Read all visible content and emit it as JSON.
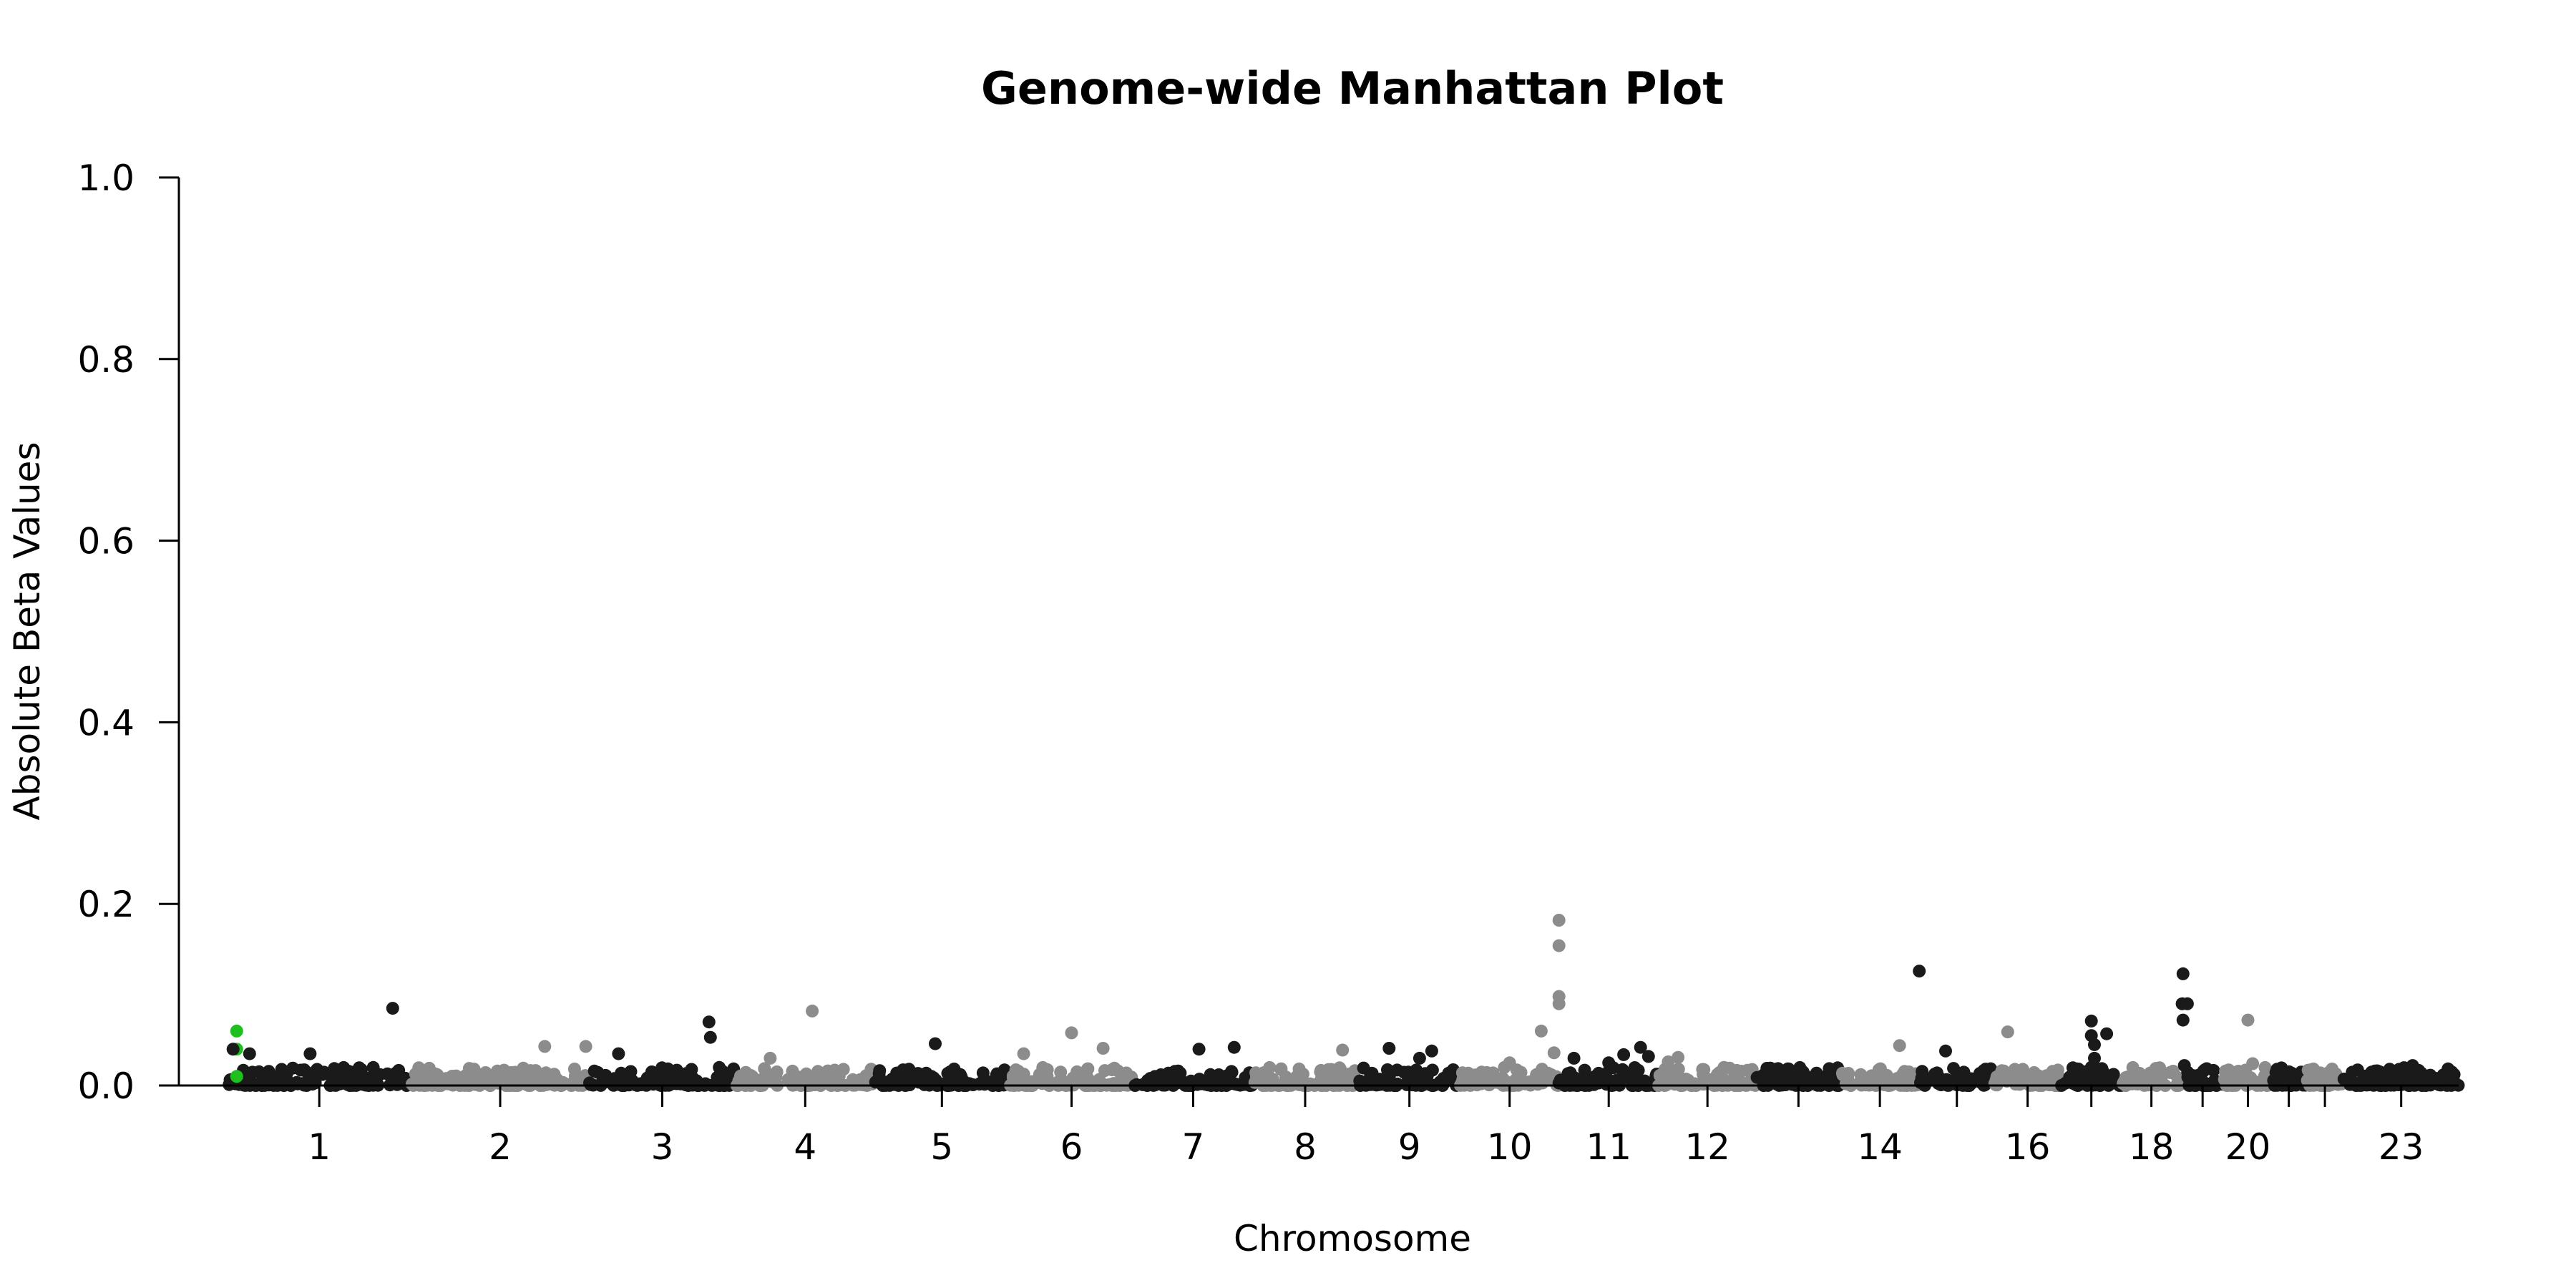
{
  "chart_data": {
    "type": "scatter",
    "title": "Genome-wide Manhattan Plot",
    "xlabel": "Chromosome",
    "ylabel": "Absolute Beta Values",
    "ylim": [
      0,
      1.0
    ],
    "y_ticks": [
      "0.0",
      "0.2",
      "0.4",
      "0.6",
      "0.8",
      "1.0"
    ],
    "x_tick_labels": [
      "1",
      "2",
      "3",
      "4",
      "5",
      "6",
      "7",
      "8",
      "9",
      "10",
      "11",
      "12",
      "14",
      "16",
      "18",
      "20",
      "23"
    ],
    "grid": false,
    "legend": "none",
    "colors": {
      "odd": "#1a1a1a",
      "even": "#8c8c8c",
      "highlight": "#1fbf1f"
    },
    "chromosomes": [
      {
        "chr": "1",
        "label": "1",
        "rel_width": 249
      },
      {
        "chr": "2",
        "label": "2",
        "rel_width": 242
      },
      {
        "chr": "3",
        "label": "3",
        "rel_width": 198
      },
      {
        "chr": "4",
        "label": "4",
        "rel_width": 190
      },
      {
        "chr": "5",
        "label": "5",
        "rel_width": 181
      },
      {
        "chr": "6",
        "label": "6",
        "rel_width": 171
      },
      {
        "chr": "7",
        "label": "7",
        "rel_width": 159
      },
      {
        "chr": "8",
        "label": "8",
        "rel_width": 145
      },
      {
        "chr": "9",
        "label": "9",
        "rel_width": 138
      },
      {
        "chr": "10",
        "label": "10",
        "rel_width": 134
      },
      {
        "chr": "11",
        "label": "11",
        "rel_width": 135
      },
      {
        "chr": "12",
        "label": "12",
        "rel_width": 133
      },
      {
        "chr": "13",
        "label": "",
        "rel_width": 114
      },
      {
        "chr": "14",
        "label": "14",
        "rel_width": 107
      },
      {
        "chr": "15",
        "label": "",
        "rel_width": 102
      },
      {
        "chr": "16",
        "label": "16",
        "rel_width": 90
      },
      {
        "chr": "17",
        "label": "",
        "rel_width": 83
      },
      {
        "chr": "18",
        "label": "18",
        "rel_width": 80
      },
      {
        "chr": "19",
        "label": "",
        "rel_width": 59
      },
      {
        "chr": "20",
        "label": "20",
        "rel_width": 64
      },
      {
        "chr": "21",
        "label": "",
        "rel_width": 47
      },
      {
        "chr": "22",
        "label": "",
        "rel_width": 51
      },
      {
        "chr": "23",
        "label": "23",
        "rel_width": 156
      }
    ],
    "notable_points": [
      {
        "chr": "1",
        "pos": 0.05,
        "y": 0.06,
        "highlight": true
      },
      {
        "chr": "1",
        "pos": 0.05,
        "y": 0.04,
        "highlight": true
      },
      {
        "chr": "1",
        "pos": 0.05,
        "y": 0.01,
        "highlight": true
      },
      {
        "chr": "1",
        "pos": 0.03,
        "y": 0.04
      },
      {
        "chr": "1",
        "pos": 0.12,
        "y": 0.035
      },
      {
        "chr": "1",
        "pos": 0.45,
        "y": 0.035
      },
      {
        "chr": "1",
        "pos": 0.9,
        "y": 0.085
      },
      {
        "chr": "2",
        "pos": 0.75,
        "y": 0.043
      },
      {
        "chr": "2",
        "pos": 0.98,
        "y": 0.043
      },
      {
        "chr": "3",
        "pos": 0.2,
        "y": 0.035
      },
      {
        "chr": "3",
        "pos": 0.82,
        "y": 0.07
      },
      {
        "chr": "3",
        "pos": 0.83,
        "y": 0.053
      },
      {
        "chr": "4",
        "pos": 0.25,
        "y": 0.03
      },
      {
        "chr": "4",
        "pos": 0.55,
        "y": 0.082
      },
      {
        "chr": "5",
        "pos": 0.45,
        "y": 0.046
      },
      {
        "chr": "6",
        "pos": 0.12,
        "y": 0.035
      },
      {
        "chr": "6",
        "pos": 0.5,
        "y": 0.058
      },
      {
        "chr": "6",
        "pos": 0.75,
        "y": 0.041
      },
      {
        "chr": "7",
        "pos": 0.55,
        "y": 0.04
      },
      {
        "chr": "7",
        "pos": 0.85,
        "y": 0.042
      },
      {
        "chr": "8",
        "pos": 0.85,
        "y": 0.039
      },
      {
        "chr": "9",
        "pos": 0.3,
        "y": 0.041
      },
      {
        "chr": "9",
        "pos": 0.6,
        "y": 0.03
      },
      {
        "chr": "9",
        "pos": 0.72,
        "y": 0.038
      },
      {
        "chr": "10",
        "pos": 0.5,
        "y": 0.025
      },
      {
        "chr": "10",
        "pos": 0.82,
        "y": 0.06
      },
      {
        "chr": "10",
        "pos": 1.0,
        "y": 0.182
      },
      {
        "chr": "10",
        "pos": 1.0,
        "y": 0.154
      },
      {
        "chr": "10",
        "pos": 1.0,
        "y": 0.098
      },
      {
        "chr": "10",
        "pos": 1.0,
        "y": 0.09
      },
      {
        "chr": "10",
        "pos": 0.95,
        "y": 0.036
      },
      {
        "chr": "11",
        "pos": 0.15,
        "y": 0.03
      },
      {
        "chr": "11",
        "pos": 0.5,
        "y": 0.025
      },
      {
        "chr": "11",
        "pos": 0.65,
        "y": 0.034
      },
      {
        "chr": "11",
        "pos": 0.82,
        "y": 0.042
      },
      {
        "chr": "11",
        "pos": 0.9,
        "y": 0.032
      },
      {
        "chr": "12",
        "pos": 0.1,
        "y": 0.026
      },
      {
        "chr": "12",
        "pos": 0.2,
        "y": 0.031
      },
      {
        "chr": "14",
        "pos": 0.75,
        "y": 0.044
      },
      {
        "chr": "15",
        "pos": 0.0,
        "y": 0.126
      },
      {
        "chr": "15",
        "pos": 0.35,
        "y": 0.038
      },
      {
        "chr": "16",
        "pos": 0.2,
        "y": 0.059
      },
      {
        "chr": "17",
        "pos": 0.5,
        "y": 0.071
      },
      {
        "chr": "17",
        "pos": 0.5,
        "y": 0.055
      },
      {
        "chr": "17",
        "pos": 0.55,
        "y": 0.045
      },
      {
        "chr": "17",
        "pos": 0.55,
        "y": 0.03
      },
      {
        "chr": "17",
        "pos": 0.5,
        "y": 0.02
      },
      {
        "chr": "17",
        "pos": 0.75,
        "y": 0.057
      },
      {
        "chr": "19",
        "pos": 0.05,
        "y": 0.123
      },
      {
        "chr": "19",
        "pos": 0.03,
        "y": 0.09
      },
      {
        "chr": "19",
        "pos": 0.15,
        "y": 0.09
      },
      {
        "chr": "19",
        "pos": 0.05,
        "y": 0.072
      },
      {
        "chr": "19",
        "pos": 0.08,
        "y": 0.022
      },
      {
        "chr": "20",
        "pos": 0.5,
        "y": 0.072
      },
      {
        "chr": "20",
        "pos": 0.6,
        "y": 0.024
      },
      {
        "chr": "23",
        "pos": 0.6,
        "y": 0.022
      },
      {
        "chr": "23",
        "pos": 0.4,
        "y": 0.018
      }
    ]
  }
}
